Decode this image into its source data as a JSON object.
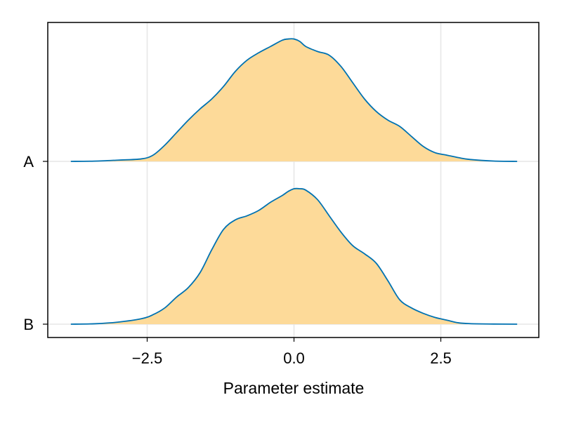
{
  "chart_data": {
    "type": "area",
    "subtype": "ridgeline-density",
    "xlabel": "Parameter estimate",
    "xlim": [
      -4.2,
      4.2
    ],
    "x_ticks": [
      -2.5,
      0.0,
      2.5
    ],
    "x_tick_labels": [
      "−2.5",
      "0.0",
      "2.5"
    ],
    "categories": [
      "A",
      "B"
    ],
    "grid": true,
    "colors": {
      "fill": "#fdda99",
      "stroke": "#0072b2",
      "grid": "#e6e6e6",
      "frame": "#000000"
    },
    "series": [
      {
        "name": "A",
        "x": [
          -3.8,
          -3.4,
          -3.0,
          -2.6,
          -2.4,
          -2.2,
          -2.0,
          -1.8,
          -1.6,
          -1.4,
          -1.2,
          -1.0,
          -0.8,
          -0.6,
          -0.4,
          -0.2,
          -0.1,
          0.0,
          0.1,
          0.2,
          0.4,
          0.6,
          0.8,
          1.0,
          1.2,
          1.4,
          1.6,
          1.8,
          2.0,
          2.2,
          2.4,
          2.6,
          2.8,
          3.0,
          3.4,
          3.8
        ],
        "density": [
          0.0,
          0.002,
          0.01,
          0.02,
          0.05,
          0.13,
          0.23,
          0.33,
          0.42,
          0.5,
          0.6,
          0.72,
          0.81,
          0.87,
          0.92,
          0.97,
          0.98,
          0.98,
          0.96,
          0.92,
          0.88,
          0.85,
          0.76,
          0.63,
          0.5,
          0.4,
          0.33,
          0.28,
          0.2,
          0.12,
          0.07,
          0.05,
          0.03,
          0.015,
          0.003,
          0.0
        ]
      },
      {
        "name": "B",
        "x": [
          -3.8,
          -3.4,
          -3.0,
          -2.6,
          -2.4,
          -2.2,
          -2.0,
          -1.8,
          -1.6,
          -1.4,
          -1.2,
          -1.0,
          -0.8,
          -0.6,
          -0.4,
          -0.2,
          -0.1,
          0.0,
          0.1,
          0.2,
          0.4,
          0.6,
          0.8,
          1.0,
          1.2,
          1.4,
          1.6,
          1.8,
          2.0,
          2.2,
          2.4,
          2.6,
          2.8,
          3.0,
          3.4,
          3.8
        ],
        "density": [
          0.0,
          0.003,
          0.015,
          0.04,
          0.07,
          0.12,
          0.2,
          0.27,
          0.38,
          0.55,
          0.7,
          0.77,
          0.8,
          0.84,
          0.9,
          0.95,
          0.98,
          1.0,
          1.0,
          0.99,
          0.92,
          0.8,
          0.68,
          0.58,
          0.52,
          0.45,
          0.32,
          0.18,
          0.12,
          0.08,
          0.05,
          0.03,
          0.01,
          0.004,
          0.001,
          0.0
        ]
      }
    ]
  }
}
